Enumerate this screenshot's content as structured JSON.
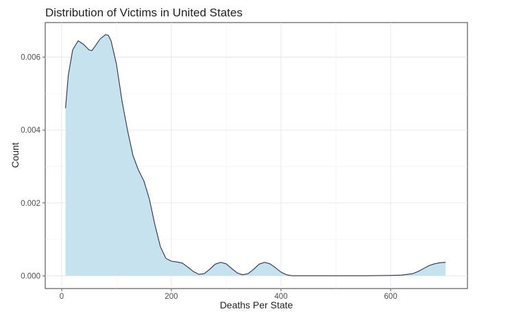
{
  "chart_data": {
    "type": "area",
    "title": "Distribution of Victims in United States",
    "xlabel": "Deaths Per State",
    "ylabel": "Count",
    "xlim": [
      -30,
      740
    ],
    "ylim": [
      -0.00035,
      0.00695
    ],
    "x_ticks": [
      0,
      200,
      400,
      600
    ],
    "x_tick_labels": [
      "0",
      "200",
      "400",
      "600"
    ],
    "y_ticks": [
      0,
      0.002,
      0.004,
      0.006
    ],
    "y_tick_labels": [
      "0.000",
      "0.002",
      "0.004",
      "0.006"
    ],
    "grid": true,
    "legend": "none",
    "fill_color": "#c6e2ee",
    "line_color": "#2b2f4a",
    "series": [
      {
        "x": [
          7,
          12,
          20,
          30,
          40,
          50,
          55,
          60,
          70,
          80,
          85,
          90,
          100,
          110,
          120,
          130,
          140,
          150,
          160,
          170,
          180,
          190,
          200,
          210,
          220,
          230,
          240,
          250,
          260,
          270,
          280,
          290,
          300,
          310,
          320,
          330,
          340,
          350,
          360,
          370,
          380,
          390,
          400,
          410,
          420,
          430,
          440,
          450,
          460,
          470,
          480,
          500,
          550,
          600,
          620,
          640,
          650,
          660,
          670,
          680,
          690,
          700
        ],
        "y": [
          0.0046,
          0.0055,
          0.0062,
          0.00645,
          0.00635,
          0.0062,
          0.00618,
          0.00628,
          0.0065,
          0.00662,
          0.0066,
          0.00645,
          0.0058,
          0.0048,
          0.004,
          0.0033,
          0.0029,
          0.0026,
          0.0021,
          0.0014,
          0.0008,
          0.00048,
          0.0004,
          0.00038,
          0.00035,
          0.00024,
          0.00012,
          4e-05,
          6e-05,
          0.00018,
          0.00032,
          0.00037,
          0.00033,
          0.0002,
          8e-05,
          3e-05,
          6e-05,
          0.00018,
          0.00032,
          0.00037,
          0.00033,
          0.00022,
          0.0001,
          3e-05,
          0.0,
          0.0,
          0.0,
          0.0,
          0.0,
          0.0,
          0.0,
          0.0,
          0.0,
          1e-05,
          2e-05,
          6e-05,
          0.00012,
          0.0002,
          0.00028,
          0.00033,
          0.00036,
          0.00037
        ]
      }
    ]
  }
}
